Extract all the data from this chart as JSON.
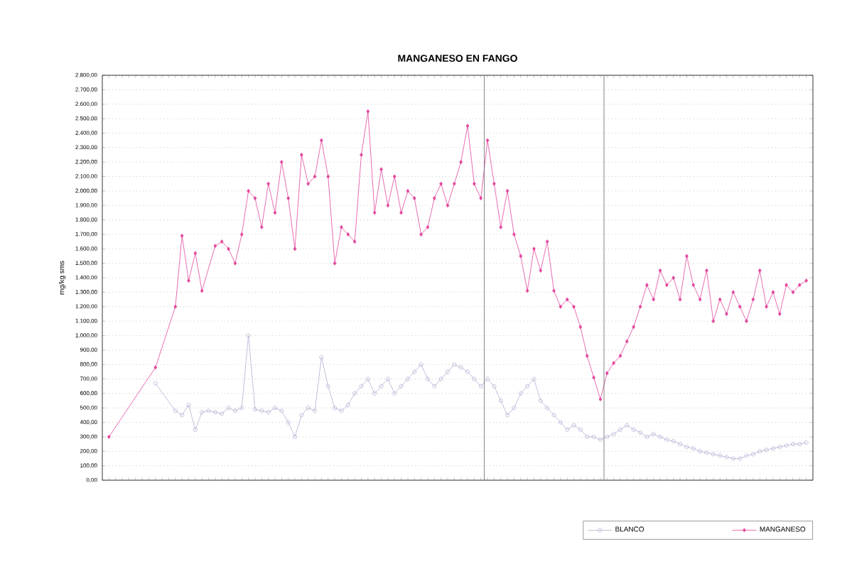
{
  "chart_data": {
    "type": "line",
    "title": "MANGANESO EN FANGO",
    "ylabel": "mg/kg sms",
    "categories": [
      null,
      null,
      null,
      null,
      null,
      null,
      null,
      null,
      null,
      null,
      null,
      null,
      null,
      null,
      null,
      null,
      null,
      null,
      null,
      null,
      null,
      null,
      null,
      null,
      null,
      null,
      null,
      null,
      null,
      null,
      null,
      null,
      null,
      null,
      null,
      null,
      null,
      null,
      null,
      null,
      null,
      null,
      null,
      null,
      null,
      null,
      null,
      null,
      null,
      null,
      null,
      null,
      null,
      null,
      null,
      null,
      null,
      null,
      null,
      null,
      null,
      null,
      null,
      null,
      null,
      null,
      null,
      null,
      null,
      null,
      null,
      null,
      null,
      null,
      null,
      null,
      null,
      null,
      null,
      null,
      null,
      null,
      null,
      null,
      null,
      null,
      null,
      null,
      null,
      null,
      null,
      null,
      null,
      null,
      null,
      null,
      null,
      null,
      null,
      null,
      null,
      null,
      null,
      null,
      null,
      null
    ],
    "series": [
      {
        "name": "BLANCO",
        "color": "#b4aed2",
        "marker": "circle",
        "values": [
          null,
          null,
          null,
          null,
          null,
          null,
          null,
          670,
          null,
          null,
          480,
          450,
          520,
          350,
          470,
          480,
          470,
          460,
          500,
          480,
          500,
          1000,
          490,
          480,
          470,
          500,
          480,
          400,
          300,
          450,
          500,
          480,
          850,
          650,
          500,
          480,
          520,
          600,
          650,
          700,
          600,
          650,
          700,
          600,
          650,
          700,
          750,
          800,
          700,
          650,
          700,
          750,
          800,
          780,
          750,
          700,
          650,
          700,
          650,
          550,
          450,
          500,
          600,
          650,
          700,
          550,
          500,
          450,
          400,
          350,
          380,
          350,
          300,
          300,
          280,
          300,
          320,
          350,
          380,
          350,
          330,
          300,
          320,
          300,
          280,
          270,
          250,
          230,
          220,
          200,
          190,
          180,
          170,
          160,
          150,
          150,
          170,
          180,
          200,
          210,
          220,
          230,
          240,
          250,
          250,
          260
        ]
      },
      {
        "name": "MANGANESO",
        "color": "#e2489e",
        "marker": "diamond",
        "values": [
          300,
          null,
          null,
          null,
          null,
          null,
          null,
          780,
          null,
          null,
          1200,
          1690,
          1380,
          1570,
          1310,
          null,
          1620,
          1650,
          1600,
          1500,
          1700,
          2000,
          1950,
          1750,
          2050,
          1850,
          2200,
          1950,
          1600,
          2250,
          2050,
          2100,
          2350,
          2100,
          1500,
          1750,
          1700,
          1650,
          2250,
          2550,
          1850,
          2150,
          1900,
          2100,
          1850,
          2000,
          1950,
          1700,
          1750,
          1950,
          2050,
          1900,
          2050,
          2200,
          2450,
          2050,
          1950,
          2350,
          2050,
          1750,
          2000,
          1700,
          1550,
          1310,
          1600,
          1450,
          1650,
          1310,
          1200,
          1250,
          1200,
          1060,
          860,
          710,
          560,
          740,
          810,
          860,
          960,
          1060,
          1200,
          1350,
          1250,
          1450,
          1350,
          1400,
          1250,
          1550,
          1350,
          1250,
          1450,
          1100,
          1250,
          1150,
          1300,
          1200,
          1100,
          1250,
          1450,
          1200,
          1300,
          1150,
          1350,
          1300,
          1350,
          1380
        ]
      }
    ],
    "ylim": [
      0,
      2800
    ],
    "yticks": [
      {
        "value": 0,
        "label": "0,00"
      },
      {
        "value": 100,
        "label": "100,00"
      },
      {
        "value": 200,
        "label": "200,00"
      },
      {
        "value": 300,
        "label": "300,00"
      },
      {
        "value": 400,
        "label": "400,00"
      },
      {
        "value": 500,
        "label": "500,00"
      },
      {
        "value": 600,
        "label": "600,00"
      },
      {
        "value": 700,
        "label": "700,00"
      },
      {
        "value": 800,
        "label": "800,00"
      },
      {
        "value": 900,
        "label": "900,00"
      },
      {
        "value": 1000,
        "label": "1.000,00"
      },
      {
        "value": 1100,
        "label": "1.100,00"
      },
      {
        "value": 1200,
        "label": "1.200,00"
      },
      {
        "value": 1300,
        "label": "1.300,00"
      },
      {
        "value": 1400,
        "label": "1.400,00"
      },
      {
        "value": 1500,
        "label": "1.500,00"
      },
      {
        "value": 1600,
        "label": "1.600,00"
      },
      {
        "value": 1700,
        "label": "1.700,00"
      },
      {
        "value": 1800,
        "label": "1.800,00"
      },
      {
        "value": 1900,
        "label": "1.900,00"
      },
      {
        "value": 2000,
        "label": "2.000,00"
      },
      {
        "value": 2100,
        "label": "2.100,00"
      },
      {
        "value": 2200,
        "label": "2.200,00"
      },
      {
        "value": 2300,
        "label": "2.300,00"
      },
      {
        "value": 2400,
        "label": "2.400,00"
      },
      {
        "value": 2500,
        "label": "2.500,00"
      },
      {
        "value": 2600,
        "label": "2.600,00"
      },
      {
        "value": 2700,
        "label": "2.700,00"
      },
      {
        "value": 2800,
        "label": "2.800,00"
      }
    ],
    "grid": "y",
    "legend": "bottom right"
  }
}
